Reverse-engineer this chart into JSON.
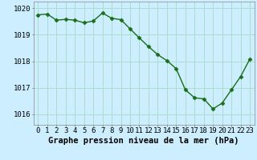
{
  "x": [
    0,
    1,
    2,
    3,
    4,
    5,
    6,
    7,
    8,
    9,
    10,
    11,
    12,
    13,
    14,
    15,
    16,
    17,
    18,
    19,
    20,
    21,
    22,
    23
  ],
  "y": [
    1019.75,
    1019.78,
    1019.55,
    1019.58,
    1019.55,
    1019.45,
    1019.52,
    1019.82,
    1019.62,
    1019.57,
    1019.22,
    1018.88,
    1018.55,
    1018.25,
    1018.02,
    1017.72,
    1016.92,
    1016.62,
    1016.58,
    1016.2,
    1016.42,
    1016.92,
    1017.42,
    1018.08
  ],
  "line_color": "#1a6e1a",
  "marker": "D",
  "marker_size": 2.5,
  "bg_color": "#cceeff",
  "grid_color": "#aaddcc",
  "xlabel": "Graphe pression niveau de la mer (hPa)",
  "xlabel_fontsize": 7.5,
  "tick_fontsize": 6.5,
  "ylim": [
    1015.6,
    1020.25
  ],
  "yticks": [
    1016,
    1017,
    1018,
    1019,
    1020
  ],
  "xlim": [
    -0.5,
    23.5
  ],
  "xticks": [
    0,
    1,
    2,
    3,
    4,
    5,
    6,
    7,
    8,
    9,
    10,
    11,
    12,
    13,
    14,
    15,
    16,
    17,
    18,
    19,
    20,
    21,
    22,
    23
  ]
}
